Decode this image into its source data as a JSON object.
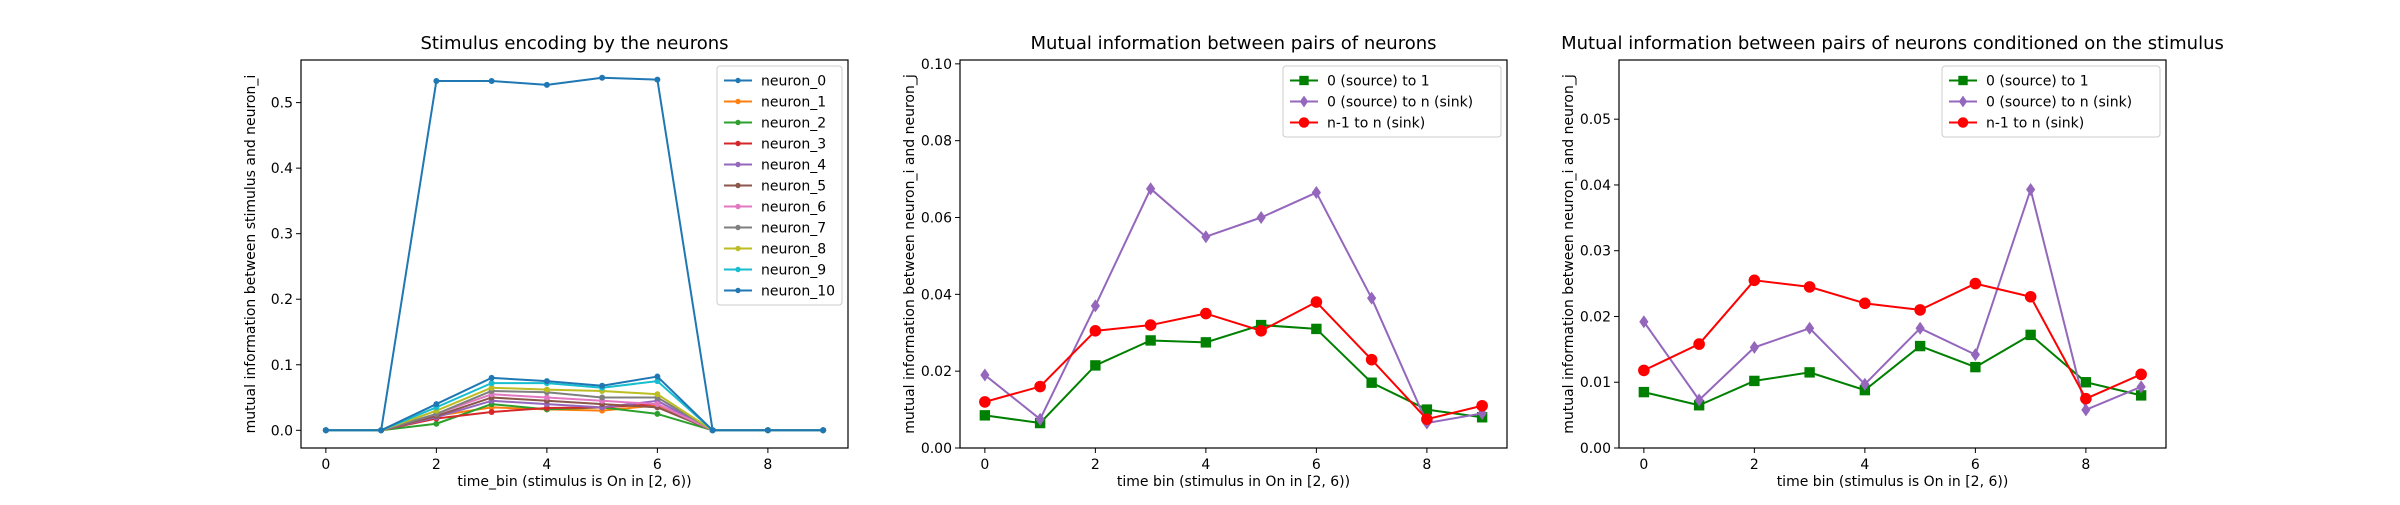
{
  "chart_data": [
    {
      "type": "line",
      "title": "Stimulus encoding by the neurons",
      "xlabel": "time_bin (stimulus is On in [2, 6))",
      "ylabel": "mutual information between stimulus and neuron_i",
      "x": [
        0,
        1,
        2,
        3,
        4,
        5,
        6,
        7,
        8,
        9
      ],
      "xlim": [
        -0.45,
        9.45
      ],
      "ylim": [
        -0.027,
        0.565
      ],
      "xticks": [
        0,
        2,
        4,
        6,
        8
      ],
      "yticks": [
        0.0,
        0.1,
        0.2,
        0.3,
        0.4,
        0.5
      ],
      "tick_decimals": 1,
      "grid": false,
      "legend_position": "top-right",
      "series": [
        {
          "name": "neuron_0",
          "color": "#1f77b4",
          "marker": "dot",
          "values": [
            0.0,
            0.0,
            0.533,
            0.533,
            0.527,
            0.538,
            0.535,
            0.0,
            0.0,
            0.0
          ]
        },
        {
          "name": "neuron_1",
          "color": "#ff7f0e",
          "marker": "dot",
          "values": [
            0.0,
            0.0,
            0.022,
            0.035,
            0.032,
            0.03,
            0.038,
            0.0,
            0.0,
            0.0
          ]
        },
        {
          "name": "neuron_2",
          "color": "#2ca02c",
          "marker": "dot",
          "values": [
            0.0,
            0.0,
            0.01,
            0.04,
            0.032,
            0.035,
            0.025,
            0.0,
            0.0,
            0.0
          ]
        },
        {
          "name": "neuron_3",
          "color": "#d62728",
          "marker": "dot",
          "values": [
            0.0,
            0.0,
            0.018,
            0.028,
            0.034,
            0.035,
            0.04,
            0.0,
            0.0,
            0.0
          ]
        },
        {
          "name": "neuron_4",
          "color": "#9467bd",
          "marker": "dot",
          "values": [
            0.0,
            0.0,
            0.02,
            0.045,
            0.04,
            0.035,
            0.045,
            0.0,
            0.0,
            0.0
          ]
        },
        {
          "name": "neuron_5",
          "color": "#8c564b",
          "marker": "dot",
          "values": [
            0.0,
            0.0,
            0.022,
            0.05,
            0.045,
            0.04,
            0.035,
            0.0,
            0.0,
            0.0
          ]
        },
        {
          "name": "neuron_6",
          "color": "#e377c2",
          "marker": "dot",
          "values": [
            0.0,
            0.0,
            0.025,
            0.055,
            0.05,
            0.045,
            0.04,
            0.0,
            0.0,
            0.0
          ]
        },
        {
          "name": "neuron_7",
          "color": "#7f7f7f",
          "marker": "dot",
          "values": [
            0.0,
            0.0,
            0.025,
            0.06,
            0.058,
            0.05,
            0.05,
            0.0,
            0.0,
            0.0
          ]
        },
        {
          "name": "neuron_8",
          "color": "#bcbd22",
          "marker": "dot",
          "values": [
            0.0,
            0.0,
            0.03,
            0.065,
            0.062,
            0.06,
            0.055,
            0.0,
            0.0,
            0.0
          ]
        },
        {
          "name": "neuron_9",
          "color": "#17becf",
          "marker": "dot",
          "values": [
            0.0,
            0.0,
            0.035,
            0.072,
            0.072,
            0.065,
            0.075,
            0.0,
            0.0,
            0.0
          ]
        },
        {
          "name": "neuron_10",
          "color": "#1f77b4",
          "marker": "dot",
          "values": [
            0.0,
            0.0,
            0.04,
            0.08,
            0.075,
            0.068,
            0.082,
            0.0,
            0.0,
            0.0
          ]
        }
      ]
    },
    {
      "type": "line",
      "title": "Mutual information between pairs of neurons",
      "xlabel": "time bin (stimulus in On in [2, 6))",
      "ylabel": "mutual information between neuron_i and neuron_j",
      "x": [
        0,
        1,
        2,
        3,
        4,
        5,
        6,
        7,
        8,
        9
      ],
      "xlim": [
        -0.45,
        9.45
      ],
      "ylim": [
        0.0,
        0.101
      ],
      "xticks": [
        0,
        2,
        4,
        6,
        8
      ],
      "yticks": [
        0.0,
        0.02,
        0.04,
        0.06,
        0.08,
        0.1
      ],
      "tick_decimals": 2,
      "grid": false,
      "legend_position": "top-right",
      "series": [
        {
          "name": "0 (source) to 1",
          "color": "#008000",
          "marker": "square",
          "values": [
            0.0085,
            0.0065,
            0.0215,
            0.028,
            0.0275,
            0.032,
            0.031,
            0.017,
            0.01,
            0.008
          ]
        },
        {
          "name": "0 (source) to n (sink)",
          "color": "#9467bd",
          "marker": "diamond",
          "values": [
            0.019,
            0.0075,
            0.037,
            0.0675,
            0.055,
            0.06,
            0.0665,
            0.039,
            0.0065,
            0.009
          ]
        },
        {
          "name": "n-1 to n (sink)",
          "color": "#ff0000",
          "marker": "circle",
          "values": [
            0.012,
            0.016,
            0.0305,
            0.032,
            0.035,
            0.0305,
            0.038,
            0.023,
            0.0075,
            0.011
          ]
        }
      ]
    },
    {
      "type": "line",
      "title": "Mutual information between pairs of neurons conditioned on the stimulus",
      "xlabel": "time bin (stimulus is On in [2, 6))",
      "ylabel": "mutual information between neuron_i and neuron_j",
      "x": [
        0,
        1,
        2,
        3,
        4,
        5,
        6,
        7,
        8,
        9
      ],
      "xlim": [
        -0.45,
        9.45
      ],
      "ylim": [
        0.0,
        0.059
      ],
      "xticks": [
        0,
        2,
        4,
        6,
        8
      ],
      "yticks": [
        0.0,
        0.01,
        0.02,
        0.03,
        0.04,
        0.05
      ],
      "tick_decimals": 2,
      "grid": false,
      "legend_position": "top-right",
      "series": [
        {
          "name": "0 (source) to 1",
          "color": "#008000",
          "marker": "square",
          "values": [
            0.0085,
            0.0065,
            0.0102,
            0.0115,
            0.0088,
            0.0155,
            0.0123,
            0.0172,
            0.01,
            0.008
          ]
        },
        {
          "name": "0 (source) to n (sink)",
          "color": "#9467bd",
          "marker": "diamond",
          "values": [
            0.0192,
            0.0073,
            0.0153,
            0.0182,
            0.0097,
            0.0182,
            0.0142,
            0.0393,
            0.0058,
            0.0093
          ]
        },
        {
          "name": "n-1 to n (sink)",
          "color": "#ff0000",
          "marker": "circle",
          "values": [
            0.0118,
            0.0158,
            0.0255,
            0.0245,
            0.022,
            0.021,
            0.025,
            0.023,
            0.0075,
            0.0112
          ]
        }
      ]
    }
  ]
}
